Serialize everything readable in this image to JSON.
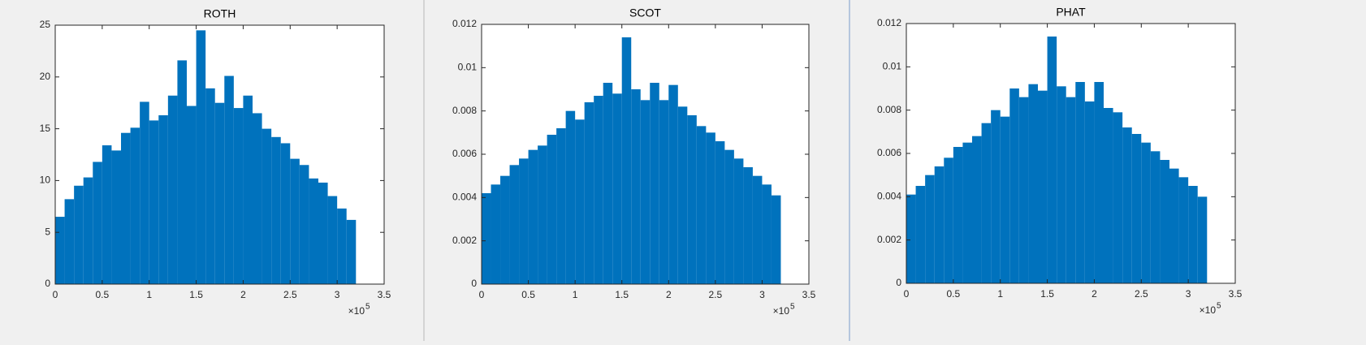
{
  "chart_data": [
    {
      "type": "bar",
      "title": "ROTH",
      "color": "#0072bd",
      "x_multiplier": {
        "base": "×10",
        "exponent": "5"
      },
      "x": [
        0.05,
        0.15,
        0.25,
        0.35,
        0.45,
        0.55,
        0.65,
        0.75,
        0.85,
        0.95,
        1.05,
        1.15,
        1.25,
        1.35,
        1.45,
        1.55,
        1.65,
        1.75,
        1.85,
        1.95,
        2.05,
        2.15,
        2.25,
        2.35,
        2.45,
        2.55,
        2.65,
        2.75,
        2.85,
        2.95,
        3.05,
        3.15
      ],
      "values": [
        6.5,
        8.2,
        9.5,
        10.3,
        11.8,
        13.4,
        12.9,
        14.6,
        15.1,
        17.6,
        15.8,
        16.3,
        18.2,
        21.6,
        17.2,
        24.5,
        18.9,
        17.5,
        20.1,
        17.0,
        18.2,
        16.5,
        15.0,
        14.2,
        13.6,
        12.1,
        11.5,
        10.2,
        9.8,
        8.5,
        7.3,
        6.2
      ],
      "xlim": [
        0,
        3.5
      ],
      "xticks": [
        0,
        0.5,
        1,
        1.5,
        2,
        2.5,
        3,
        3.5
      ],
      "ylim": [
        0,
        25
      ],
      "yticks": [
        0,
        5,
        10,
        15,
        20,
        25
      ]
    },
    {
      "type": "bar",
      "title": "SCOT",
      "color": "#0072bd",
      "x_multiplier": {
        "base": "×10",
        "exponent": "5"
      },
      "x": [
        0.05,
        0.15,
        0.25,
        0.35,
        0.45,
        0.55,
        0.65,
        0.75,
        0.85,
        0.95,
        1.05,
        1.15,
        1.25,
        1.35,
        1.45,
        1.55,
        1.65,
        1.75,
        1.85,
        1.95,
        2.05,
        2.15,
        2.25,
        2.35,
        2.45,
        2.55,
        2.65,
        2.75,
        2.85,
        2.95,
        3.05,
        3.15
      ],
      "values": [
        0.0042,
        0.0046,
        0.005,
        0.0055,
        0.0058,
        0.0062,
        0.0064,
        0.0069,
        0.0072,
        0.008,
        0.0076,
        0.0084,
        0.0087,
        0.0093,
        0.0088,
        0.0114,
        0.009,
        0.0085,
        0.0093,
        0.0085,
        0.0092,
        0.0082,
        0.0078,
        0.0073,
        0.007,
        0.0066,
        0.0062,
        0.0058,
        0.0054,
        0.005,
        0.0046,
        0.0041
      ],
      "xlim": [
        0,
        3.5
      ],
      "xticks": [
        0,
        0.5,
        1,
        1.5,
        2,
        2.5,
        3,
        3.5
      ],
      "ylim": [
        0,
        0.012
      ],
      "yticks": [
        0,
        0.002,
        0.004,
        0.006,
        0.008,
        0.01,
        0.012
      ]
    },
    {
      "type": "bar",
      "title": "PHAT",
      "color": "#0072bd",
      "x_multiplier": {
        "base": "×10",
        "exponent": "5"
      },
      "x": [
        0.05,
        0.15,
        0.25,
        0.35,
        0.45,
        0.55,
        0.65,
        0.75,
        0.85,
        0.95,
        1.05,
        1.15,
        1.25,
        1.35,
        1.45,
        1.55,
        1.65,
        1.75,
        1.85,
        1.95,
        2.05,
        2.15,
        2.25,
        2.35,
        2.45,
        2.55,
        2.65,
        2.75,
        2.85,
        2.95,
        3.05,
        3.15
      ],
      "values": [
        0.0041,
        0.0045,
        0.005,
        0.0054,
        0.0058,
        0.0063,
        0.0065,
        0.0068,
        0.0074,
        0.008,
        0.0077,
        0.009,
        0.0086,
        0.0092,
        0.0089,
        0.0114,
        0.0091,
        0.0086,
        0.0093,
        0.0084,
        0.0093,
        0.0081,
        0.0079,
        0.0072,
        0.0069,
        0.0065,
        0.0061,
        0.0057,
        0.0053,
        0.0049,
        0.0045,
        0.004
      ],
      "xlim": [
        0,
        3.5
      ],
      "xticks": [
        0,
        0.5,
        1,
        1.5,
        2,
        2.5,
        3,
        3.5
      ],
      "ylim": [
        0,
        0.012
      ],
      "yticks": [
        0,
        0.002,
        0.004,
        0.006,
        0.008,
        0.01,
        0.012
      ]
    }
  ]
}
